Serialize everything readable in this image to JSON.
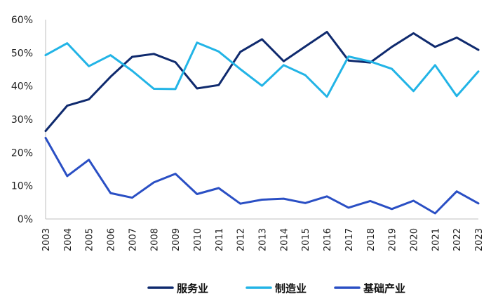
{
  "chart_data": {
    "type": "line",
    "title": "",
    "xlabel": "",
    "ylabel": "",
    "x": [
      "2003",
      "2004",
      "2005",
      "2006",
      "2007",
      "2008",
      "2009",
      "2010",
      "2011",
      "2012",
      "2013",
      "2014",
      "2015",
      "2016",
      "2017",
      "2018",
      "2019",
      "2020",
      "2021",
      "2022",
      "2023"
    ],
    "ylim": [
      0,
      60
    ],
    "yticks": [
      "0%",
      "10%",
      "20%",
      "30%",
      "40%",
      "50%",
      "60%"
    ],
    "grid": false,
    "legend_position": "bottom",
    "series": [
      {
        "name": "服务业",
        "color": "#0f2a6e",
        "values": [
          26.5,
          34.1,
          36.0,
          42.8,
          48.8,
          49.7,
          47.2,
          39.3,
          40.3,
          50.3,
          54.1,
          47.5,
          51.9,
          56.3,
          47.7,
          47.1,
          51.8,
          55.9,
          51.8,
          54.6,
          50.9
        ]
      },
      {
        "name": "制造业",
        "color": "#22b4e6",
        "values": [
          49.3,
          52.9,
          46.0,
          49.3,
          44.6,
          39.2,
          39.1,
          53.1,
          50.4,
          45.1,
          40.1,
          46.3,
          43.3,
          36.8,
          48.9,
          47.4,
          45.2,
          38.5,
          46.3,
          37.0,
          44.4
        ]
      },
      {
        "name": "基础产业",
        "color": "#2a4fc4",
        "values": [
          24.4,
          12.9,
          17.8,
          7.8,
          6.4,
          11.0,
          13.6,
          7.5,
          9.3,
          4.6,
          5.8,
          6.1,
          4.8,
          6.8,
          3.4,
          5.4,
          3.0,
          5.5,
          1.7,
          8.3,
          4.7
        ]
      }
    ]
  }
}
